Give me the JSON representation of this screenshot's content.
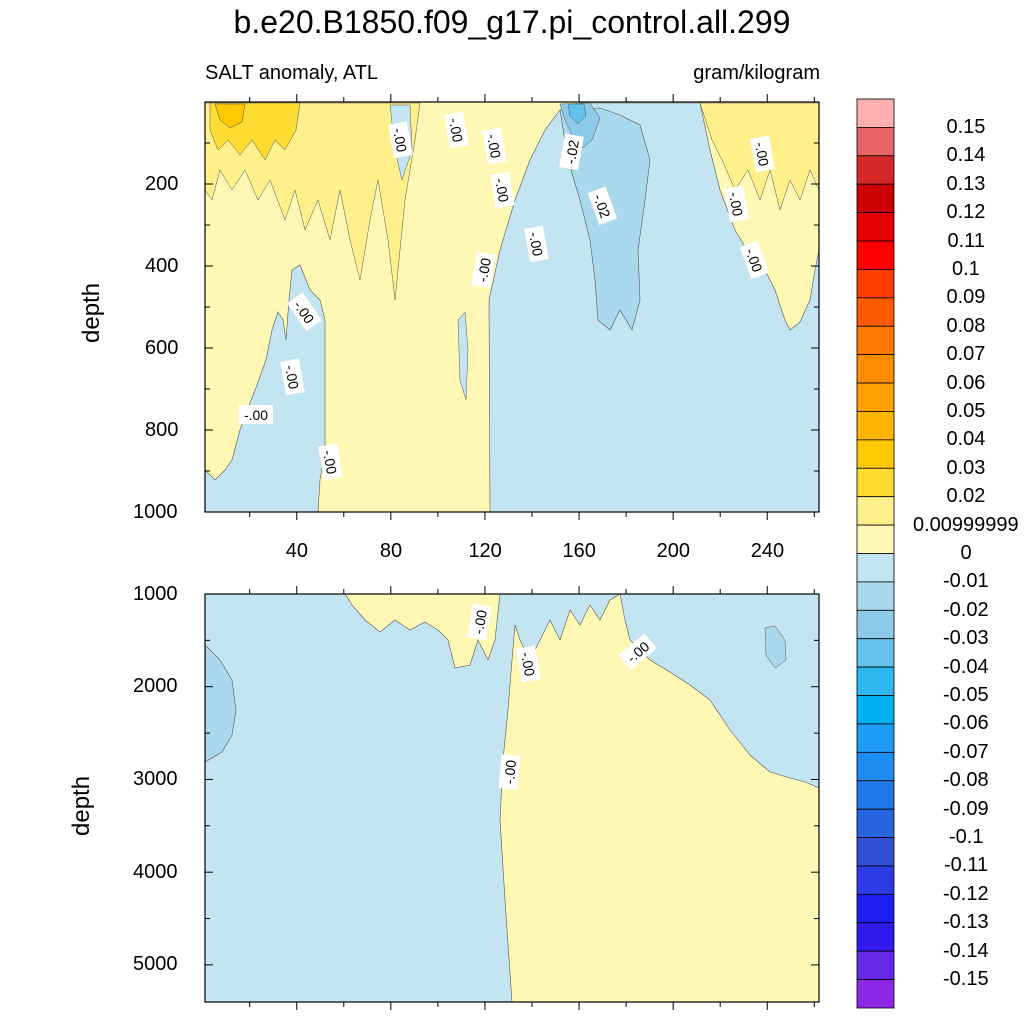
{
  "title": "b.e20.B1850.f09_g17.pi_control.all.299",
  "subtitle_left": "SALT anomaly, ATL",
  "subtitle_right": "gram/kilogram",
  "chart_data": [
    {
      "type": "heatmap",
      "panel": "upper",
      "ylabel": "depth",
      "xlabel": "",
      "xlim": [
        1,
        262
      ],
      "ylim": [
        1000,
        0
      ],
      "x_ticks": [
        "40",
        "80",
        "120",
        "160",
        "200",
        "240"
      ],
      "y_ticks": [
        "200",
        "400",
        "600",
        "800",
        "1000"
      ],
      "contour_labels": [
        "-.00",
        "-.00",
        "-.00",
        "-.02",
        "-.00",
        "-.02",
        "-.00",
        "-.00",
        "-.00",
        "-.00",
        "-.00",
        "-.00",
        "-.00",
        "-.00",
        "-.00"
      ]
    },
    {
      "type": "heatmap",
      "panel": "lower",
      "ylabel": "depth",
      "xlabel": "",
      "xlim": [
        1,
        262
      ],
      "ylim": [
        5400,
        1000
      ],
      "x_ticks": [],
      "y_ticks": [
        "1000",
        "2000",
        "3000",
        "4000",
        "5000"
      ],
      "contour_labels": [
        "-.00",
        "-.00",
        "-.00",
        "-.00"
      ]
    }
  ],
  "colorbar": {
    "labels": [
      "0.15",
      "0.14",
      "0.13",
      "0.12",
      "0.11",
      "0.1",
      "0.09",
      "0.08",
      "0.07",
      "0.06",
      "0.05",
      "0.04",
      "0.03",
      "0.02",
      "0.00999999",
      "0",
      "-0.01",
      "-0.02",
      "-0.03",
      "-0.04",
      "-0.05",
      "-0.06",
      "-0.07",
      "-0.08",
      "-0.09",
      "-0.1",
      "-0.11",
      "-0.12",
      "-0.13",
      "-0.14",
      "-0.15"
    ],
    "colors": [
      "#FFB1B1",
      "#E86464",
      "#D42828",
      "#CC0000",
      "#E40000",
      "#FF0000",
      "#FF3C00",
      "#FF5A00",
      "#FF7800",
      "#FF8C00",
      "#FFA000",
      "#FFB400",
      "#FFC800",
      "#FFDC32",
      "#FFF08C",
      "#FFF8B4",
      "#C3E5F2",
      "#AAD8EC",
      "#8CCAEA",
      "#64C1EC",
      "#2DB9F0",
      "#00B0F0",
      "#1E9BF5",
      "#1E8CF0",
      "#1E78E6",
      "#2864DC",
      "#3250D2",
      "#2B3CE6",
      "#1E1EF0",
      "#3219F0",
      "#6428E6",
      "#8C28E6"
    ]
  }
}
